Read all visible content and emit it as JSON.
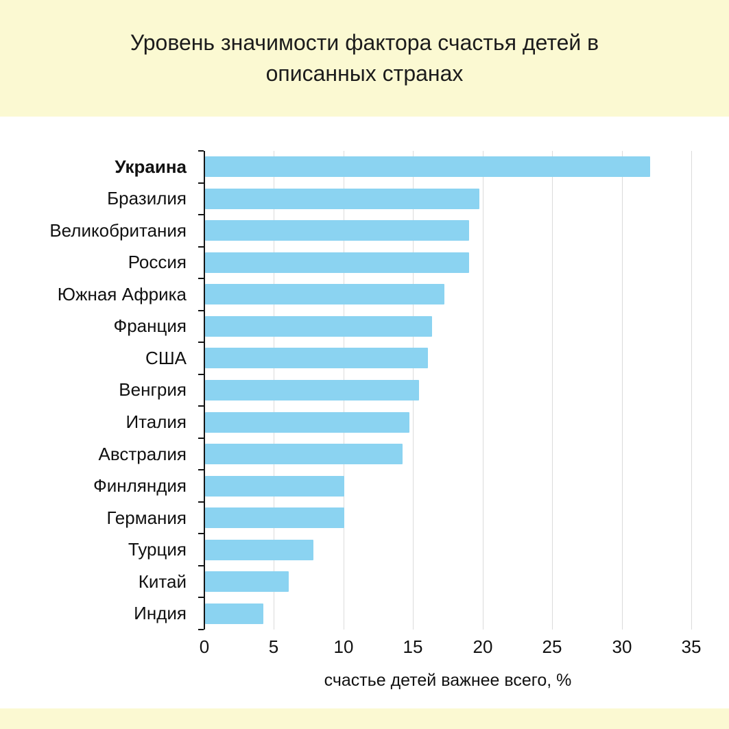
{
  "theme": {
    "band_yellow": "#FBF9D2",
    "bar_blue": "#8BD3F1",
    "grid_gray": "#DBDBDB",
    "axis_black": "#141414",
    "text_dark": "#1C1C1C"
  },
  "chart_data": {
    "type": "bar",
    "orientation": "horizontal",
    "title": "Уровень значимости фактора счастья детей в описанных странах",
    "xlabel": "счастье детей важнее всего, %",
    "ylabel": "",
    "xlim": [
      0,
      35
    ],
    "xticks": [
      0,
      5,
      10,
      15,
      20,
      25,
      30,
      35
    ],
    "grid": true,
    "legend": false,
    "highlighted_category": "Украина",
    "categories": [
      "Украина",
      "Бразилия",
      "Великобритания",
      "Россия",
      "Южная Африка",
      "Франция",
      "США",
      "Венгрия",
      "Италия",
      "Австралия",
      "Финляндия",
      "Германия",
      "Турция",
      "Китай",
      "Индия"
    ],
    "values": [
      32,
      19.7,
      19,
      19,
      17.2,
      16.3,
      16,
      15.4,
      14.7,
      14.2,
      10,
      10,
      7.8,
      6,
      4.2
    ]
  }
}
